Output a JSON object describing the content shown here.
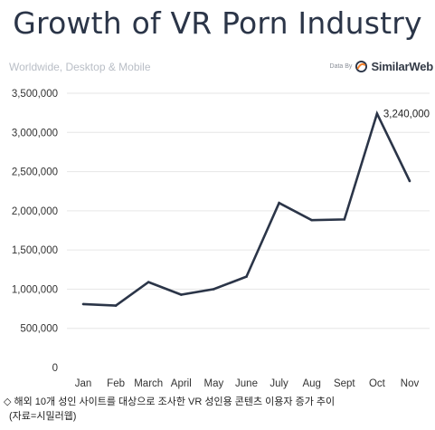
{
  "header": {
    "title": "Growth of VR Porn Industry",
    "subtitle": "Worldwide, Desktop & Mobile",
    "source_prefix": "Data By",
    "source_name": "SimilarWeb",
    "logo_icon": "similarweb-logo-icon"
  },
  "colors": {
    "line": "#2b3548",
    "grid": "#e6e6e6",
    "axis_text": "#333333",
    "logo_orange": "#f4812d",
    "logo_dark": "#2b3548"
  },
  "chart_data": {
    "type": "line",
    "categories": [
      "Jan",
      "Feb",
      "March",
      "April",
      "May",
      "June",
      "July",
      "Aug",
      "Sept",
      "Oct",
      "Nov"
    ],
    "series": [
      {
        "values": [
          810000,
          790000,
          1090000,
          930000,
          1000000,
          1160000,
          2100000,
          1880000,
          1890000,
          3240000,
          2380000
        ]
      }
    ],
    "ylim": [
      0,
      3500000
    ],
    "yticks": [
      0,
      500000,
      1000000,
      1500000,
      2000000,
      2500000,
      3000000,
      3500000
    ],
    "ytick_labels": [
      "0",
      "500,000",
      "1,000,000",
      "1,500,000",
      "2,000,000",
      "2,500,000",
      "3,000,000",
      "3,500,000"
    ],
    "grid": true,
    "annotations": [
      {
        "category": "Oct",
        "value": 3240000,
        "text": "3,240,000"
      }
    ],
    "xlabel": "",
    "ylabel": ""
  },
  "caption": {
    "line1": "◇ 해외 10개 성인 사이트를 대상으로 조사한  VR 성인용 콘텐츠 이용자 증가 추이",
    "line2": "(자료=시밀러웹)"
  }
}
